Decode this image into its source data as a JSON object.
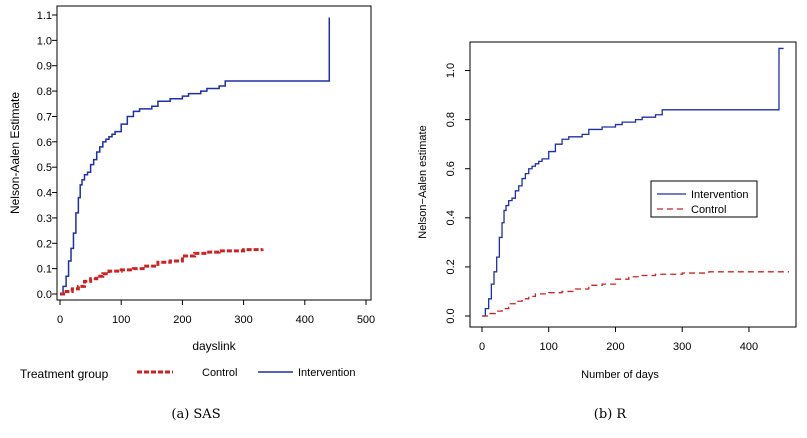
{
  "chart_data": [
    {
      "type": "line",
      "title": "",
      "xlabel": "dayslink",
      "ylabel": "Nelson-Aalen Estimate",
      "xlim": [
        0,
        500
      ],
      "ylim": [
        0,
        1.1
      ],
      "xticks": [
        "0",
        "100",
        "200",
        "300",
        "400",
        "500"
      ],
      "yticks": [
        "0.0",
        "0.1",
        "0.2",
        "0.3",
        "0.4",
        "0.5",
        "0.6",
        "0.7",
        "0.8",
        "0.9",
        "1.0",
        "1.1"
      ],
      "legend": {
        "title": "Treatment group",
        "placement": "bottom",
        "entries": [
          "Control",
          "Intervention"
        ]
      },
      "caption": "(a)  SAS",
      "series": [
        {
          "name": "Intervention",
          "color": "#1f2fa8",
          "style": "solid",
          "x": [
            0,
            5,
            10,
            14,
            18,
            22,
            26,
            30,
            33,
            36,
            40,
            45,
            50,
            55,
            60,
            65,
            70,
            75,
            80,
            85,
            90,
            100,
            110,
            120,
            130,
            140,
            150,
            160,
            170,
            180,
            190,
            200,
            210,
            220,
            230,
            240,
            250,
            260,
            270,
            280,
            440,
            440
          ],
          "y": [
            0,
            0.03,
            0.07,
            0.13,
            0.18,
            0.24,
            0.32,
            0.38,
            0.43,
            0.45,
            0.47,
            0.48,
            0.51,
            0.53,
            0.56,
            0.58,
            0.6,
            0.61,
            0.62,
            0.63,
            0.64,
            0.67,
            0.7,
            0.72,
            0.73,
            0.73,
            0.74,
            0.76,
            0.76,
            0.77,
            0.77,
            0.78,
            0.79,
            0.79,
            0.8,
            0.81,
            0.81,
            0.82,
            0.84,
            0.84,
            0.84,
            1.09
          ]
        },
        {
          "name": "Control",
          "color": "#cc2222",
          "style": "dashed",
          "x": [
            0,
            10,
            20,
            30,
            40,
            50,
            60,
            70,
            80,
            100,
            120,
            140,
            160,
            180,
            200,
            220,
            240,
            260,
            280,
            300,
            330
          ],
          "y": [
            0,
            0.01,
            0.02,
            0.03,
            0.05,
            0.06,
            0.07,
            0.08,
            0.09,
            0.095,
            0.1,
            0.11,
            0.125,
            0.13,
            0.15,
            0.16,
            0.165,
            0.17,
            0.17,
            0.175,
            0.18
          ]
        }
      ]
    },
    {
      "type": "line",
      "title": "",
      "xlabel": "Number of days",
      "ylabel": "Nelson−Aalen estimate",
      "xlim": [
        0,
        460
      ],
      "ylim": [
        0,
        1.1
      ],
      "xticks": [
        "0",
        "100",
        "200",
        "300",
        "400"
      ],
      "yticks": [
        "0.0",
        "0.2",
        "0.4",
        "0.6",
        "0.8",
        "1.0"
      ],
      "legend": {
        "placement": "right",
        "entries": [
          "Intervention",
          "Control"
        ]
      },
      "caption": "(b)  R",
      "series": [
        {
          "name": "Intervention",
          "color": "#1f2fa8",
          "style": "solid",
          "x": [
            0,
            5,
            10,
            14,
            18,
            22,
            26,
            30,
            33,
            36,
            40,
            45,
            50,
            55,
            60,
            65,
            70,
            75,
            80,
            85,
            90,
            100,
            110,
            120,
            130,
            140,
            150,
            160,
            170,
            180,
            190,
            200,
            210,
            220,
            230,
            240,
            250,
            260,
            270,
            280,
            445,
            445,
            452
          ],
          "y": [
            0,
            0.03,
            0.07,
            0.13,
            0.18,
            0.24,
            0.32,
            0.38,
            0.43,
            0.45,
            0.47,
            0.48,
            0.51,
            0.53,
            0.56,
            0.58,
            0.6,
            0.61,
            0.62,
            0.63,
            0.64,
            0.67,
            0.7,
            0.72,
            0.73,
            0.73,
            0.74,
            0.76,
            0.76,
            0.77,
            0.77,
            0.78,
            0.79,
            0.79,
            0.8,
            0.81,
            0.81,
            0.82,
            0.84,
            0.84,
            0.84,
            1.09,
            1.09
          ]
        },
        {
          "name": "Control",
          "color": "#cc2222",
          "style": "dashed",
          "x": [
            0,
            10,
            20,
            30,
            40,
            50,
            60,
            70,
            80,
            100,
            120,
            140,
            160,
            180,
            200,
            220,
            240,
            260,
            280,
            300,
            340,
            460
          ],
          "y": [
            0,
            0.01,
            0.02,
            0.03,
            0.05,
            0.06,
            0.07,
            0.08,
            0.09,
            0.095,
            0.1,
            0.11,
            0.125,
            0.13,
            0.15,
            0.16,
            0.165,
            0.17,
            0.17,
            0.175,
            0.18,
            0.18
          ]
        }
      ]
    }
  ]
}
